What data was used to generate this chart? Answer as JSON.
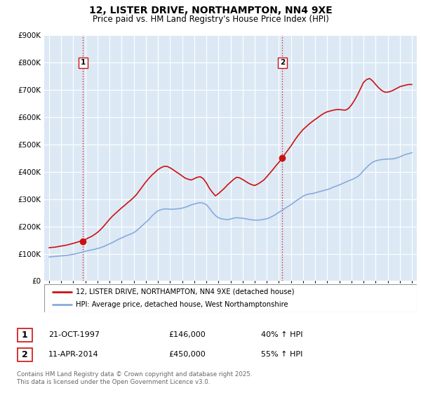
{
  "title": "12, LISTER DRIVE, NORTHAMPTON, NN4 9XE",
  "subtitle": "Price paid vs. HM Land Registry's House Price Index (HPI)",
  "ylim": [
    0,
    900000
  ],
  "yticks": [
    0,
    100000,
    200000,
    300000,
    400000,
    500000,
    600000,
    700000,
    800000,
    900000
  ],
  "ytick_labels": [
    "£0",
    "£100K",
    "£200K",
    "£300K",
    "£400K",
    "£500K",
    "£600K",
    "£700K",
    "£800K",
    "£900K"
  ],
  "xlim_start": 1994.6,
  "xlim_end": 2025.4,
  "background_color": "#ffffff",
  "chart_bg_color": "#dce9f5",
  "grid_color": "#ffffff",
  "red_line_color": "#cc1111",
  "blue_line_color": "#88aadd",
  "sale1_date": 1997.81,
  "sale1_price": 146000,
  "sale2_date": 2014.28,
  "sale2_price": 450000,
  "legend_label_red": "12, LISTER DRIVE, NORTHAMPTON, NN4 9XE (detached house)",
  "legend_label_blue": "HPI: Average price, detached house, West Northamptonshire",
  "table_row1": [
    "1",
    "21-OCT-1997",
    "£146,000",
    "40% ↑ HPI"
  ],
  "table_row2": [
    "2",
    "11-APR-2014",
    "£450,000",
    "55% ↑ HPI"
  ],
  "footer": "Contains HM Land Registry data © Crown copyright and database right 2025.\nThis data is licensed under the Open Government Licence v3.0.",
  "hpi_years": [
    1995.0,
    1995.25,
    1995.5,
    1995.75,
    1996.0,
    1996.25,
    1996.5,
    1996.75,
    1997.0,
    1997.25,
    1997.5,
    1997.75,
    1998.0,
    1998.25,
    1998.5,
    1998.75,
    1999.0,
    1999.25,
    1999.5,
    1999.75,
    2000.0,
    2000.25,
    2000.5,
    2000.75,
    2001.0,
    2001.25,
    2001.5,
    2001.75,
    2002.0,
    2002.25,
    2002.5,
    2002.75,
    2003.0,
    2003.25,
    2003.5,
    2003.75,
    2004.0,
    2004.25,
    2004.5,
    2004.75,
    2005.0,
    2005.25,
    2005.5,
    2005.75,
    2006.0,
    2006.25,
    2006.5,
    2006.75,
    2007.0,
    2007.25,
    2007.5,
    2007.75,
    2008.0,
    2008.25,
    2008.5,
    2008.75,
    2009.0,
    2009.25,
    2009.5,
    2009.75,
    2010.0,
    2010.25,
    2010.5,
    2010.75,
    2011.0,
    2011.25,
    2011.5,
    2011.75,
    2012.0,
    2012.25,
    2012.5,
    2012.75,
    2013.0,
    2013.25,
    2013.5,
    2013.75,
    2014.0,
    2014.25,
    2014.5,
    2014.75,
    2015.0,
    2015.25,
    2015.5,
    2015.75,
    2016.0,
    2016.25,
    2016.5,
    2016.75,
    2017.0,
    2017.25,
    2017.5,
    2017.75,
    2018.0,
    2018.25,
    2018.5,
    2018.75,
    2019.0,
    2019.25,
    2019.5,
    2019.75,
    2020.0,
    2020.25,
    2020.5,
    2020.75,
    2021.0,
    2021.25,
    2021.5,
    2021.75,
    2022.0,
    2022.25,
    2022.5,
    2022.75,
    2023.0,
    2023.25,
    2023.5,
    2023.75,
    2024.0,
    2024.25,
    2024.5,
    2024.75,
    2025.0
  ],
  "hpi_values": [
    88000,
    89000,
    90000,
    91000,
    92000,
    93000,
    94000,
    96000,
    98000,
    100000,
    103000,
    106000,
    109000,
    111000,
    114000,
    116000,
    119000,
    122000,
    126000,
    131000,
    136000,
    141000,
    147000,
    153000,
    158000,
    163000,
    168000,
    172000,
    177000,
    185000,
    195000,
    205000,
    215000,
    225000,
    238000,
    248000,
    257000,
    261000,
    264000,
    264000,
    263000,
    263000,
    264000,
    265000,
    267000,
    270000,
    274000,
    279000,
    282000,
    285000,
    287000,
    285000,
    280000,
    267000,
    252000,
    240000,
    232000,
    228000,
    226000,
    225000,
    227000,
    230000,
    232000,
    231000,
    230000,
    228000,
    226000,
    224000,
    223000,
    223000,
    224000,
    226000,
    228000,
    232000,
    238000,
    244000,
    252000,
    258000,
    266000,
    273000,
    280000,
    288000,
    296000,
    303000,
    311000,
    316000,
    319000,
    320000,
    323000,
    326000,
    329000,
    332000,
    335000,
    339000,
    344000,
    348000,
    352000,
    357000,
    362000,
    367000,
    371000,
    376000,
    382000,
    392000,
    405000,
    416000,
    427000,
    435000,
    440000,
    443000,
    445000,
    446000,
    447000,
    447000,
    448000,
    451000,
    455000,
    460000,
    464000,
    467000,
    470000
  ],
  "price_years": [
    1995.0,
    1995.25,
    1995.5,
    1995.75,
    1996.0,
    1996.25,
    1996.5,
    1996.75,
    1997.0,
    1997.25,
    1997.5,
    1997.81,
    1998.0,
    1998.25,
    1998.5,
    1998.75,
    1999.0,
    1999.25,
    1999.5,
    1999.75,
    2000.0,
    2000.25,
    2000.5,
    2000.75,
    2001.0,
    2001.25,
    2001.5,
    2001.75,
    2002.0,
    2002.25,
    2002.5,
    2002.75,
    2003.0,
    2003.25,
    2003.5,
    2003.75,
    2004.0,
    2004.25,
    2004.5,
    2004.75,
    2005.0,
    2005.25,
    2005.5,
    2005.75,
    2006.0,
    2006.25,
    2006.5,
    2006.75,
    2007.0,
    2007.25,
    2007.5,
    2007.75,
    2008.0,
    2008.25,
    2008.5,
    2008.75,
    2009.0,
    2009.25,
    2009.5,
    2009.75,
    2010.0,
    2010.25,
    2010.5,
    2010.75,
    2011.0,
    2011.25,
    2011.5,
    2011.75,
    2012.0,
    2012.25,
    2012.5,
    2012.75,
    2013.0,
    2013.25,
    2013.5,
    2013.75,
    2014.0,
    2014.28,
    2014.5,
    2014.75,
    2015.0,
    2015.25,
    2015.5,
    2015.75,
    2016.0,
    2016.25,
    2016.5,
    2016.75,
    2017.0,
    2017.25,
    2017.5,
    2017.75,
    2018.0,
    2018.25,
    2018.5,
    2018.75,
    2019.0,
    2019.25,
    2019.5,
    2019.75,
    2020.0,
    2020.25,
    2020.5,
    2020.75,
    2021.0,
    2021.25,
    2021.5,
    2021.75,
    2022.0,
    2022.25,
    2022.5,
    2022.75,
    2023.0,
    2023.25,
    2023.5,
    2023.75,
    2024.0,
    2024.25,
    2024.5,
    2024.75,
    2025.0
  ],
  "price_values": [
    122000,
    123000,
    124000,
    126000,
    128000,
    130000,
    132000,
    135000,
    138000,
    141000,
    145000,
    146000,
    152000,
    158000,
    163000,
    170000,
    178000,
    188000,
    200000,
    213000,
    226000,
    238000,
    248000,
    258000,
    268000,
    277000,
    287000,
    296000,
    306000,
    318000,
    333000,
    348000,
    363000,
    376000,
    388000,
    398000,
    408000,
    415000,
    420000,
    420000,
    415000,
    408000,
    400000,
    393000,
    385000,
    377000,
    373000,
    370000,
    375000,
    380000,
    382000,
    375000,
    360000,
    340000,
    325000,
    312000,
    320000,
    330000,
    340000,
    352000,
    362000,
    372000,
    380000,
    378000,
    372000,
    365000,
    358000,
    353000,
    350000,
    355000,
    362000,
    370000,
    382000,
    395000,
    408000,
    422000,
    435000,
    450000,
    465000,
    480000,
    495000,
    512000,
    528000,
    542000,
    555000,
    565000,
    575000,
    584000,
    592000,
    600000,
    608000,
    615000,
    620000,
    623000,
    626000,
    628000,
    628000,
    627000,
    626000,
    632000,
    645000,
    662000,
    682000,
    705000,
    728000,
    738000,
    742000,
    733000,
    720000,
    708000,
    698000,
    692000,
    692000,
    695000,
    700000,
    706000,
    712000,
    715000,
    718000,
    720000,
    720000
  ]
}
